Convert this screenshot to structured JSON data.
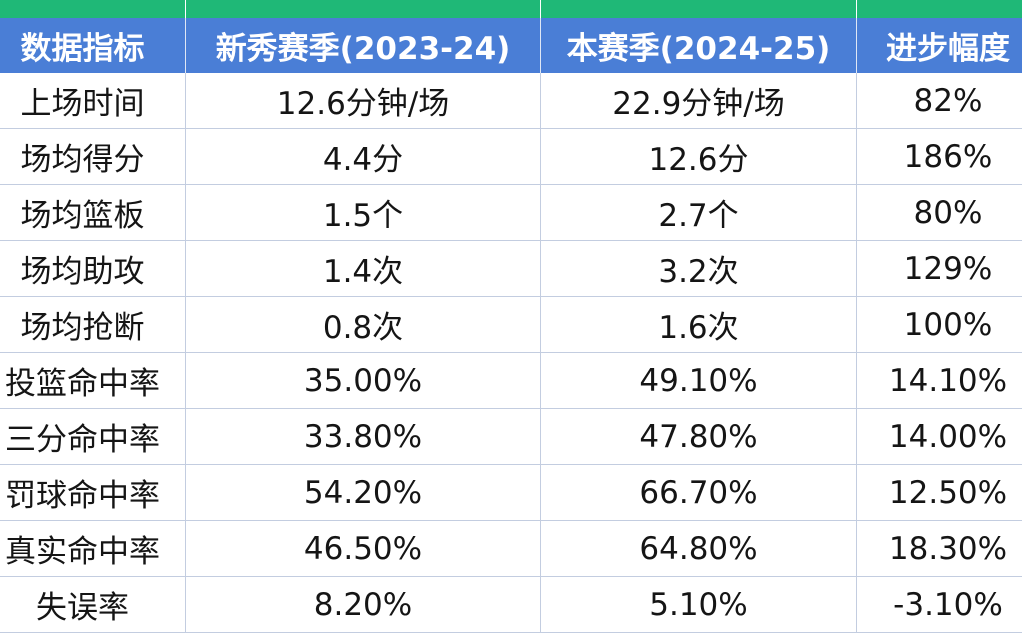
{
  "table": {
    "header": [
      "数据指标",
      "新秀赛季(2023-24)",
      "本赛季(2024-25)",
      "进步幅度"
    ],
    "rows": [
      [
        "上场时间",
        "12.6分钟/场",
        "22.9分钟/场",
        "82%"
      ],
      [
        "场均得分",
        "4.4分",
        "12.6分",
        "186%"
      ],
      [
        "场均篮板",
        "1.5个",
        "2.7个",
        "80%"
      ],
      [
        "场均助攻",
        "1.4次",
        "3.2次",
        "129%"
      ],
      [
        "场均抢断",
        "0.8次",
        "1.6次",
        "100%"
      ],
      [
        "投篮命中率",
        "35.00%",
        "49.10%",
        "14.10%"
      ],
      [
        "三分命中率",
        "33.80%",
        "47.80%",
        "14.00%"
      ],
      [
        "罚球命中率",
        "54.20%",
        "66.70%",
        "12.50%"
      ],
      [
        "真实命中率",
        "46.50%",
        "64.80%",
        "18.30%"
      ],
      [
        "失误率",
        "8.20%",
        "5.10%",
        "-3.10%"
      ]
    ]
  }
}
